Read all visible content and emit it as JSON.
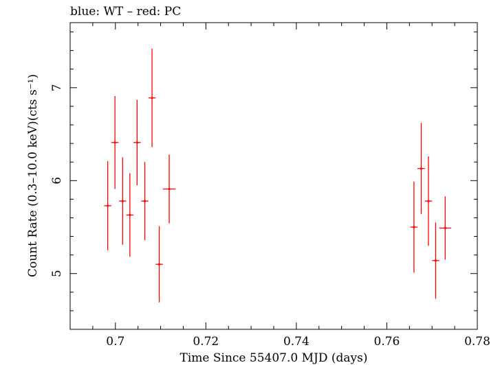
{
  "header": {
    "caption": "blue: WT – red: PC"
  },
  "chart_data": {
    "type": "scatter",
    "title": "blue: WT – red: PC",
    "xlabel": "Time Since 55407.0 MJD (days)",
    "ylabel": "Count Rate (0.3–10.0 keV)(cts s⁻¹)",
    "xlim": [
      0.69,
      0.78
    ],
    "ylim": [
      4.4,
      7.7
    ],
    "x_ticks": [
      0.7,
      0.72,
      0.74,
      0.76,
      0.78
    ],
    "x_tick_labels": [
      "0.7",
      "0.72",
      "0.74",
      "0.76",
      "0.78"
    ],
    "y_ticks": [
      5,
      6,
      7
    ],
    "y_tick_labels": [
      "5",
      "6",
      "7"
    ],
    "grid": false,
    "legend": "none",
    "series": [
      {
        "name": "PC",
        "color": "#ff0000",
        "points": [
          {
            "x": 0.6983,
            "xerr": 0.0008,
            "y": 5.73,
            "yerr": 0.48
          },
          {
            "x": 0.6999,
            "xerr": 0.0008,
            "y": 6.41,
            "yerr": 0.5
          },
          {
            "x": 0.7016,
            "xerr": 0.0008,
            "y": 5.78,
            "yerr": 0.47
          },
          {
            "x": 0.7032,
            "xerr": 0.0008,
            "y": 5.63,
            "yerr": 0.45
          },
          {
            "x": 0.7048,
            "xerr": 0.0008,
            "y": 6.41,
            "yerr": 0.46
          },
          {
            "x": 0.7065,
            "xerr": 0.0008,
            "y": 5.78,
            "yerr": 0.42
          },
          {
            "x": 0.7081,
            "xerr": 0.0008,
            "y": 6.89,
            "yerr": 0.53
          },
          {
            "x": 0.7097,
            "xerr": 0.0008,
            "y": 5.1,
            "yerr": 0.41
          },
          {
            "x": 0.7119,
            "xerr": 0.0014,
            "y": 5.91,
            "yerr": 0.37
          },
          {
            "x": 0.766,
            "xerr": 0.0008,
            "y": 5.5,
            "yerr": 0.49
          },
          {
            "x": 0.7676,
            "xerr": 0.0008,
            "y": 6.13,
            "yerr": 0.49
          },
          {
            "x": 0.7692,
            "xerr": 0.0008,
            "y": 5.78,
            "yerr": 0.48
          },
          {
            "x": 0.7708,
            "xerr": 0.0008,
            "y": 5.14,
            "yerr": 0.41
          },
          {
            "x": 0.7729,
            "xerr": 0.0013,
            "y": 5.49,
            "yerr": 0.34
          }
        ]
      }
    ]
  }
}
